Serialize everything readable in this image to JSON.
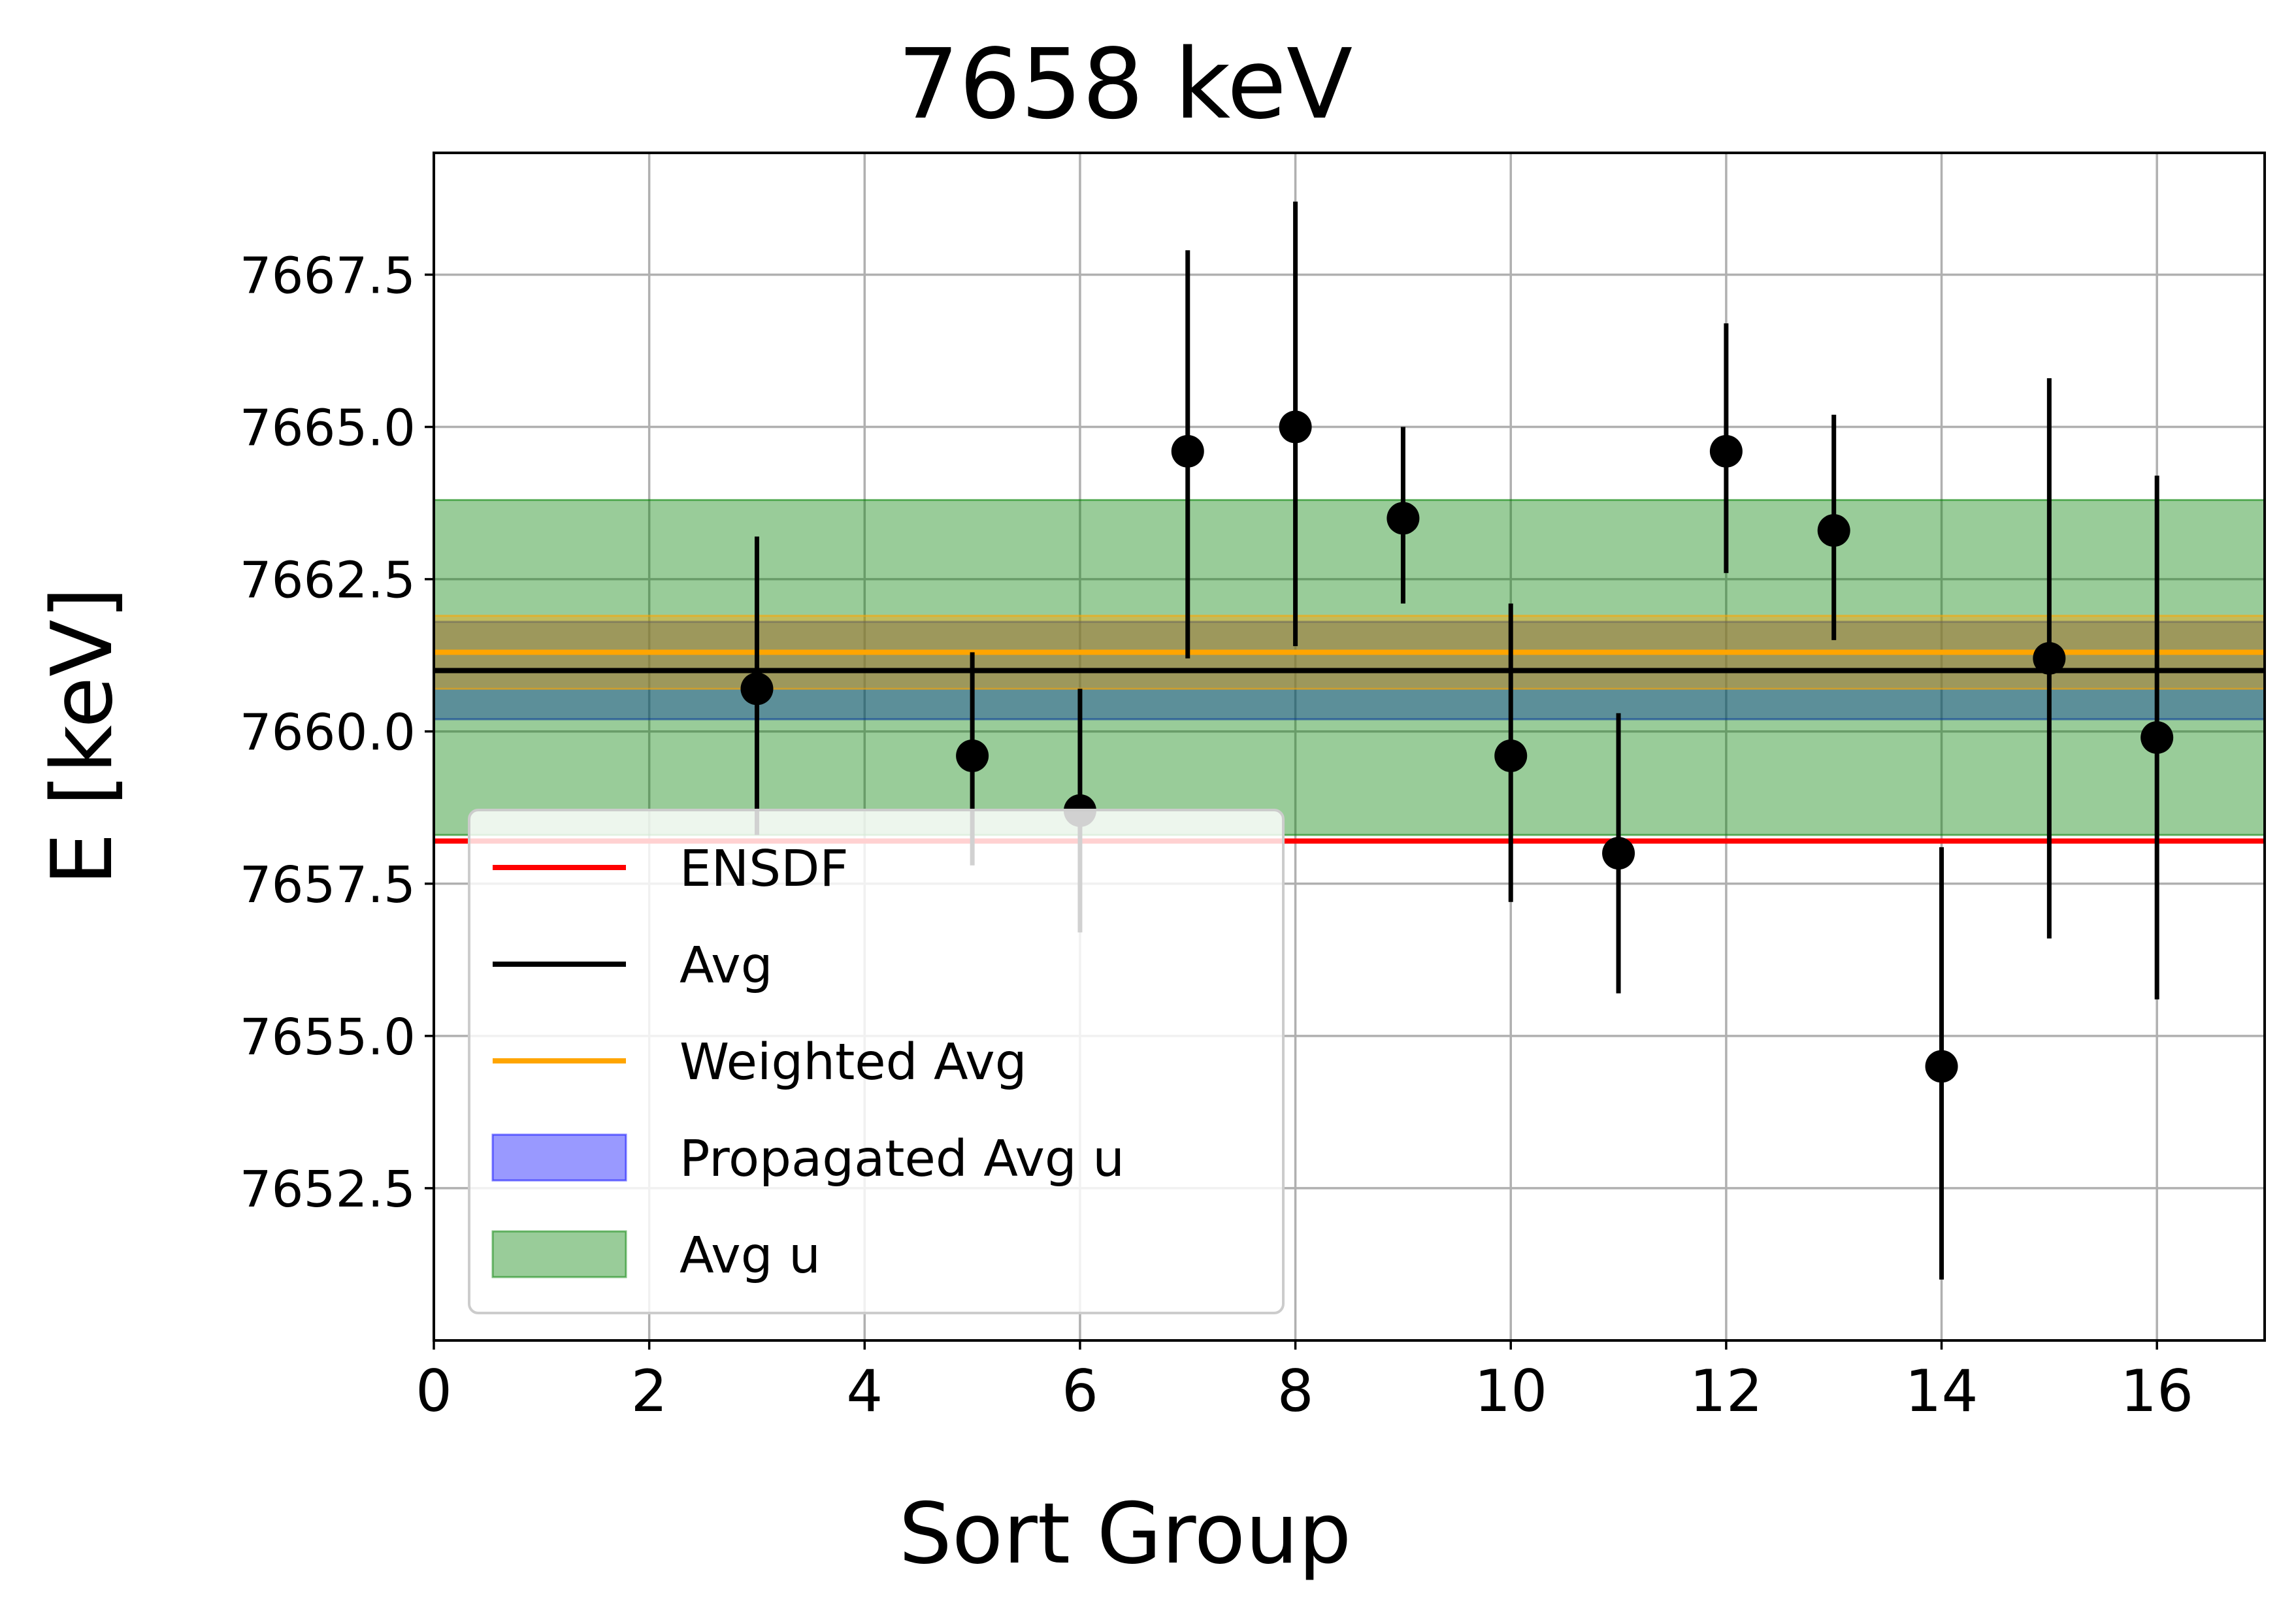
{
  "chart_data": {
    "type": "scatter",
    "title": "7658 keV",
    "xlabel": "Sort Group",
    "ylabel": "E [keV]",
    "xlim": [
      0,
      17
    ],
    "ylim": [
      7650.0,
      7669.5
    ],
    "xticks": [
      0,
      2,
      4,
      6,
      8,
      10,
      12,
      14,
      16
    ],
    "xtick_labels": [
      "0",
      "2",
      "4",
      "6",
      "8",
      "10",
      "12",
      "14",
      "16"
    ],
    "yticks": [
      7652.5,
      7655.0,
      7657.5,
      7660.0,
      7662.5,
      7665.0,
      7667.5
    ],
    "ytick_labels": [
      "7652.5",
      "7655.0",
      "7657.5",
      "7660.0",
      "7662.5",
      "7665.0",
      "7667.5"
    ],
    "grid": true,
    "legend_position": "lower-left",
    "points": [
      {
        "x": 3,
        "y": 7660.7,
        "err_low": 7658.3,
        "err_high": 7663.2
      },
      {
        "x": 5,
        "y": 7659.6,
        "err_low": 7657.8,
        "err_high": 7661.3
      },
      {
        "x": 6,
        "y": 7658.7,
        "err_low": 7656.7,
        "err_high": 7660.7
      },
      {
        "x": 7,
        "y": 7664.6,
        "err_low": 7661.2,
        "err_high": 7667.9
      },
      {
        "x": 8,
        "y": 7665.0,
        "err_low": 7661.4,
        "err_high": 7668.7
      },
      {
        "x": 9,
        "y": 7663.5,
        "err_low": 7662.1,
        "err_high": 7665.0
      },
      {
        "x": 10,
        "y": 7659.6,
        "err_low": 7657.2,
        "err_high": 7662.1
      },
      {
        "x": 11,
        "y": 7658.0,
        "err_low": 7655.7,
        "err_high": 7660.3
      },
      {
        "x": 12,
        "y": 7664.6,
        "err_low": 7662.6,
        "err_high": 7666.7
      },
      {
        "x": 13,
        "y": 7663.3,
        "err_low": 7661.5,
        "err_high": 7665.2
      },
      {
        "x": 14,
        "y": 7654.5,
        "err_low": 7651.0,
        "err_high": 7658.1
      },
      {
        "x": 15,
        "y": 7661.2,
        "err_low": 7656.6,
        "err_high": 7665.8
      },
      {
        "x": 16,
        "y": 7659.9,
        "err_low": 7655.6,
        "err_high": 7664.2
      }
    ],
    "lines": [
      {
        "name": "ENSDF",
        "y": 7658.2,
        "color": "#ff0000"
      },
      {
        "name": "Avg",
        "y": 7661.0,
        "color": "#000000"
      },
      {
        "name": "Weighted Avg",
        "y": 7661.3,
        "color": "#ffa500"
      }
    ],
    "bands": [
      {
        "name": "Propagated Avg u",
        "y_low": 7660.2,
        "y_high": 7661.8,
        "color": "#0000ff",
        "opacity": 0.4
      },
      {
        "name": "Avg u",
        "y_low": 7658.3,
        "y_high": 7663.8,
        "color": "#008000",
        "opacity": 0.4
      },
      {
        "name": "",
        "y_low": 7660.7,
        "y_high": 7661.9,
        "color": "#ffa500",
        "opacity": 0.4
      }
    ],
    "legend": [
      {
        "label": "ENSDF",
        "kind": "line",
        "color": "#ff0000"
      },
      {
        "label": "Avg",
        "kind": "line",
        "color": "#000000"
      },
      {
        "label": "Weighted Avg",
        "kind": "line",
        "color": "#ffa500"
      },
      {
        "label": "Propagated Avg u",
        "kind": "patch",
        "color": "#0000ff"
      },
      {
        "label": "Avg u",
        "kind": "patch",
        "color": "#008000"
      }
    ]
  }
}
